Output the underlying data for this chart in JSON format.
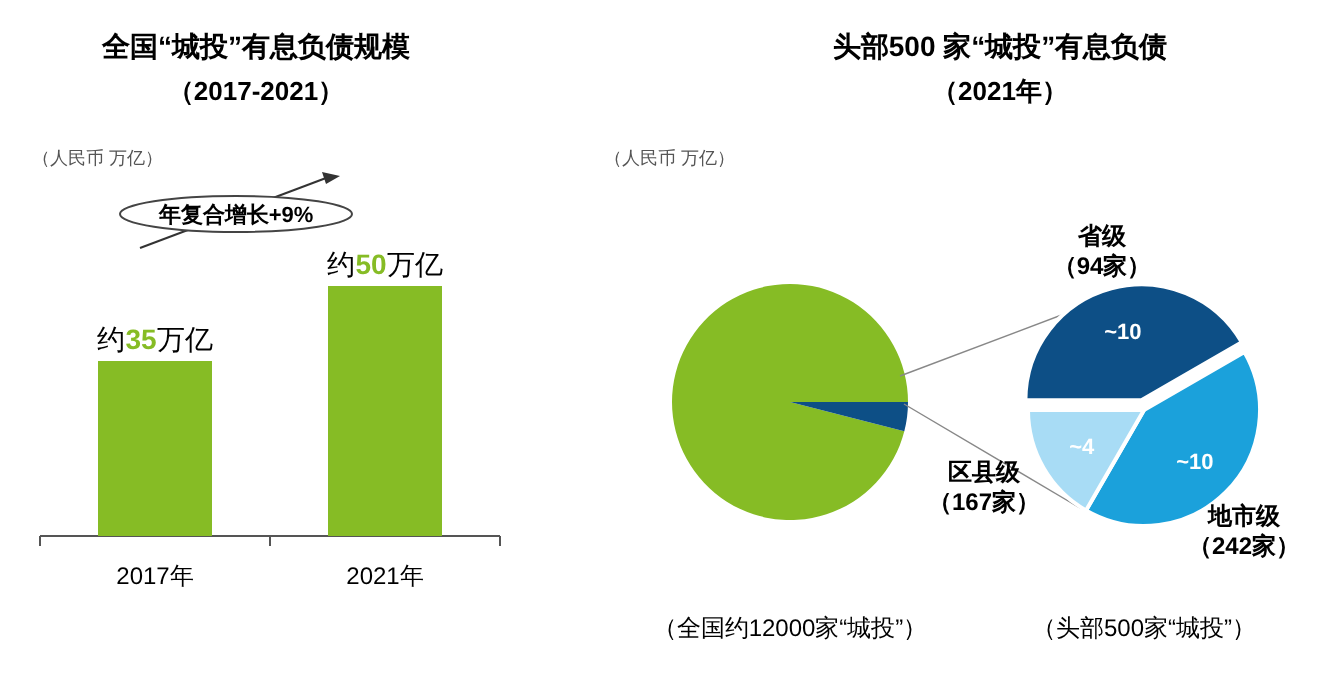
{
  "chart_data": [
    {
      "type": "bar",
      "title": "全国“城投”有息负债规模",
      "subtitle": "（2017-2021）",
      "categories": [
        "2017年",
        "2021年"
      ],
      "values": [
        35,
        50
      ],
      "value_labels": [
        "约35万亿",
        "约50万亿"
      ],
      "color": "#86bc25",
      "annotations": [
        "（人民币 万亿）",
        "年复合增长+9%"
      ]
    },
    {
      "type": "pie",
      "title": "头部500 家“城投”有息负债",
      "subtitle": "（2021年）",
      "categories": [
        null,
        null
      ],
      "values": [
        96,
        4
      ],
      "colors": [
        "#86bc25",
        "#0d4f86"
      ],
      "xlabel": "（全国约12000家“城投”）",
      "annotations": [
        "（人民币 万亿）"
      ]
    },
    {
      "type": "pie",
      "categories": [
        "省级（94家）",
        "地市级（242家）",
        "区县级（167家）"
      ],
      "values": [
        10,
        10,
        4
      ],
      "value_labels": [
        "~10",
        "~10",
        "~4"
      ],
      "colors": [
        "#0d4f86",
        "#1ba1db",
        "#a8dcf5"
      ],
      "xlabel": "（头部500家“城投”）"
    }
  ]
}
